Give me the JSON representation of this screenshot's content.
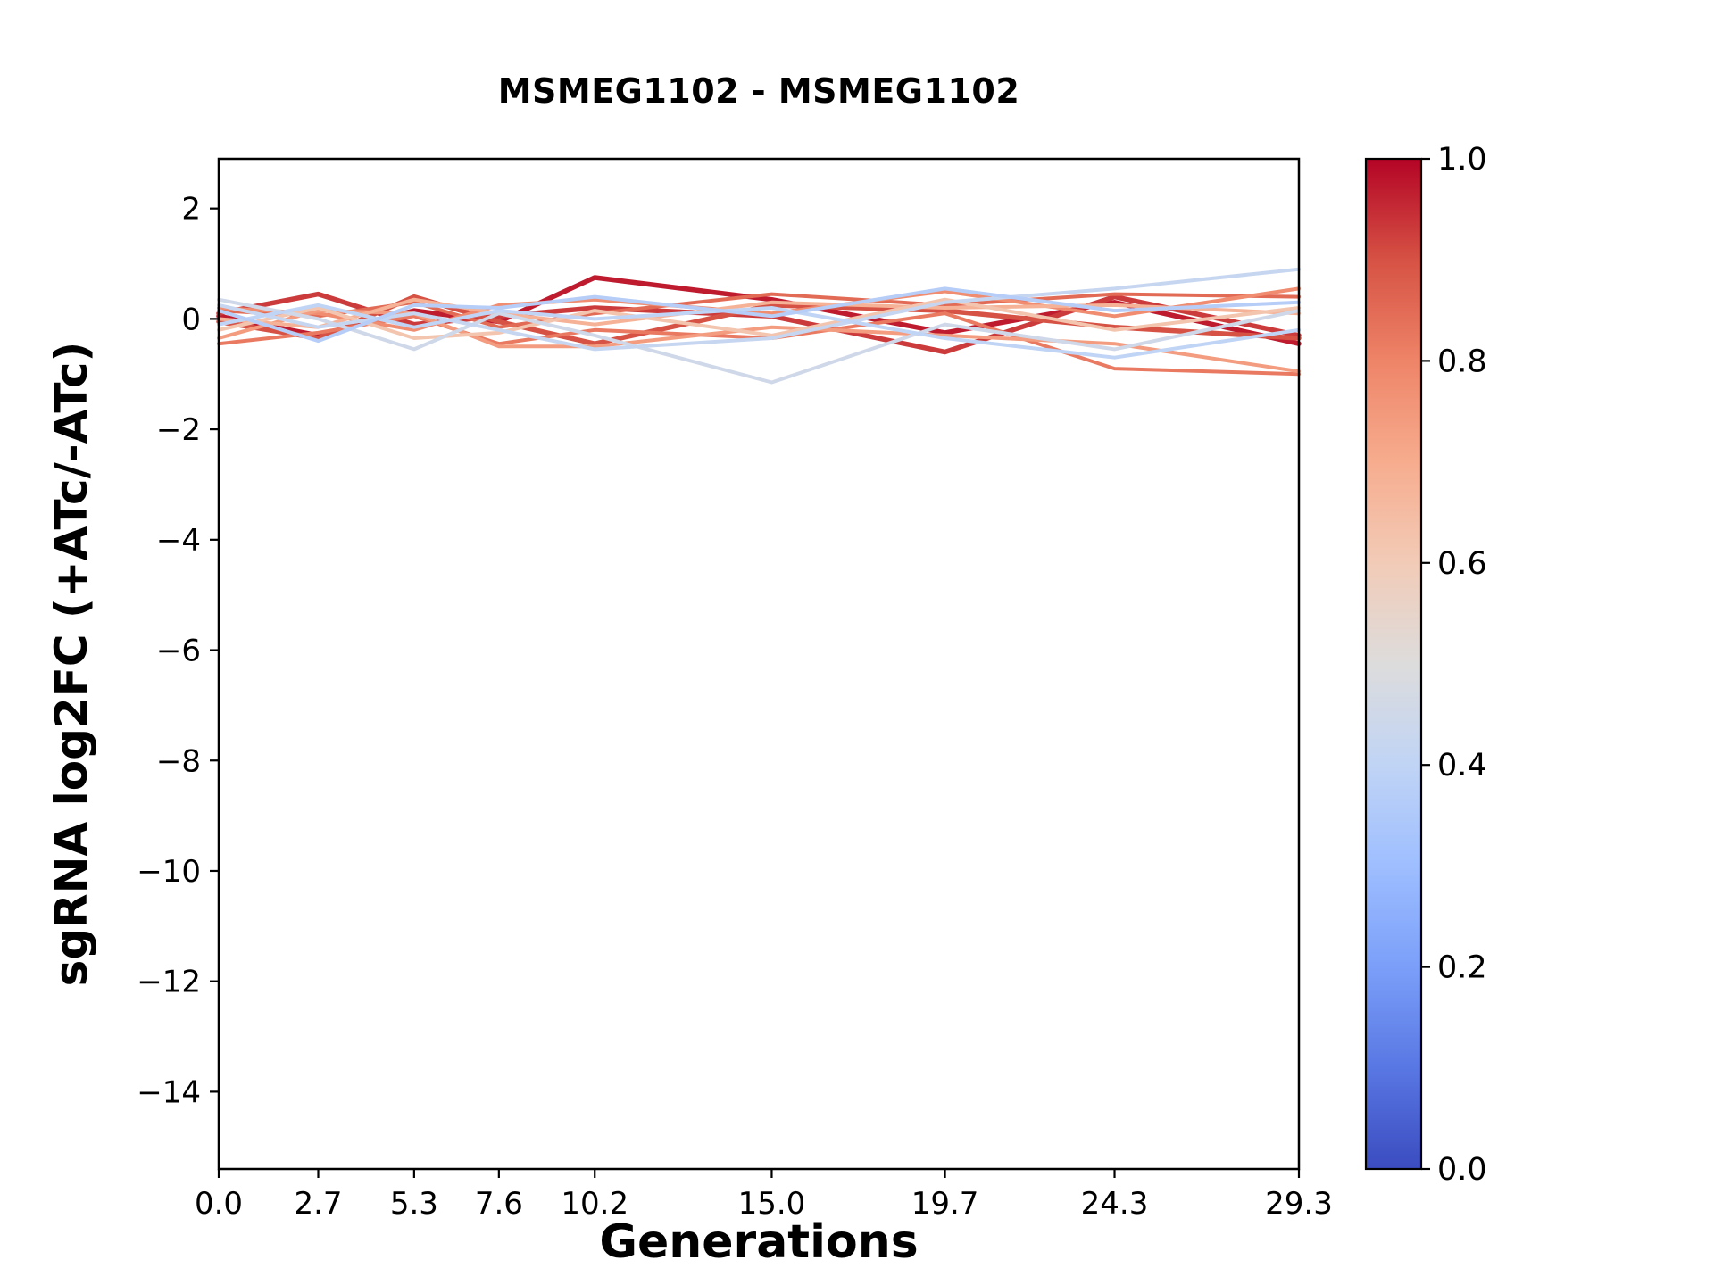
{
  "chart_data": {
    "type": "line",
    "title": "MSMEG1102 - MSMEG1102",
    "xlabel": "Generations",
    "ylabel": "sgRNA log2FC (+ATc/-ATc)",
    "grid": false,
    "legend": "none",
    "xlim": [
      0.0,
      29.3
    ],
    "ylim": [
      -15.4,
      2.9
    ],
    "x": [
      0.0,
      2.7,
      5.3,
      7.6,
      10.2,
      15.0,
      19.7,
      24.3,
      29.3
    ],
    "xtick_labels": [
      "0.0",
      "2.7",
      "5.3",
      "7.6",
      "10.2",
      "15.0",
      "19.7",
      "24.3",
      "29.3"
    ],
    "yticks": [
      2,
      0,
      -2,
      -4,
      -6,
      -8,
      -10,
      -12,
      -14
    ],
    "ytick_labels": [
      "2",
      "0",
      "−2",
      "−4",
      "−6",
      "−8",
      "−10",
      "−12",
      "−14"
    ],
    "series": [
      {
        "c": 0.97,
        "values": [
          0.05,
          -0.3,
          0.15,
          -0.05,
          0.75,
          0.35,
          -0.25,
          0.3,
          -0.45
        ]
      },
      {
        "c": 0.93,
        "values": [
          0.1,
          0.45,
          -0.1,
          0.05,
          0.2,
          0.05,
          -0.6,
          0.4,
          -0.3
        ]
      },
      {
        "c": 0.9,
        "values": [
          -0.05,
          -0.35,
          0.4,
          -0.05,
          -0.45,
          0.25,
          0.15,
          -0.15,
          -0.35
        ]
      },
      {
        "c": 0.85,
        "values": [
          0.15,
          0.05,
          0.3,
          -0.15,
          0.1,
          0.45,
          0.25,
          0.45,
          0.4
        ]
      },
      {
        "c": 0.82,
        "values": [
          -0.45,
          -0.25,
          0.05,
          -0.45,
          -0.2,
          -0.35,
          0.1,
          -0.9,
          -1.0
        ]
      },
      {
        "c": 0.78,
        "values": [
          0.2,
          0.1,
          -0.2,
          0.25,
          0.35,
          0.1,
          0.5,
          0.05,
          0.55
        ]
      },
      {
        "c": 0.74,
        "values": [
          -0.35,
          0.15,
          0.1,
          -0.5,
          -0.5,
          -0.15,
          -0.3,
          -0.45,
          -0.95
        ]
      },
      {
        "c": 0.68,
        "values": [
          0.0,
          -0.15,
          0.35,
          0.1,
          -0.1,
          0.3,
          0.2,
          0.25,
          0.1
        ]
      },
      {
        "c": 0.62,
        "values": [
          -0.2,
          0.2,
          -0.35,
          -0.25,
          0.15,
          -0.3,
          0.35,
          -0.2,
          0.2
        ]
      },
      {
        "c": 0.45,
        "values": [
          0.35,
          0.0,
          -0.55,
          0.1,
          -0.3,
          -1.15,
          -0.1,
          -0.55,
          0.15
        ]
      },
      {
        "c": 0.42,
        "values": [
          0.25,
          -0.15,
          0.1,
          -0.2,
          -0.55,
          -0.35,
          0.3,
          0.55,
          0.9
        ]
      },
      {
        "c": 0.4,
        "values": [
          -0.1,
          0.25,
          -0.15,
          0.15,
          0.0,
          0.2,
          -0.35,
          -0.7,
          -0.2
        ]
      },
      {
        "c": 0.37,
        "values": [
          0.15,
          -0.4,
          0.25,
          0.2,
          0.4,
          0.05,
          0.55,
          0.15,
          0.3
        ]
      }
    ],
    "colorbar": {
      "cmap": "coolwarm",
      "ticks": [
        0.0,
        0.2,
        0.4,
        0.6,
        0.8,
        1.0
      ],
      "tick_labels": [
        "0.0",
        "0.2",
        "0.4",
        "0.6",
        "0.8",
        "1.0"
      ],
      "gradient": [
        "#3b4cc0",
        "#5977e3",
        "#7b9ff9",
        "#9ebeff",
        "#c0d4f5",
        "#dddcdc",
        "#f2cbb7",
        "#f7ac8e",
        "#ee8468",
        "#d65244",
        "#b40426"
      ]
    },
    "axis_color": "#000000",
    "background": "#ffffff"
  }
}
